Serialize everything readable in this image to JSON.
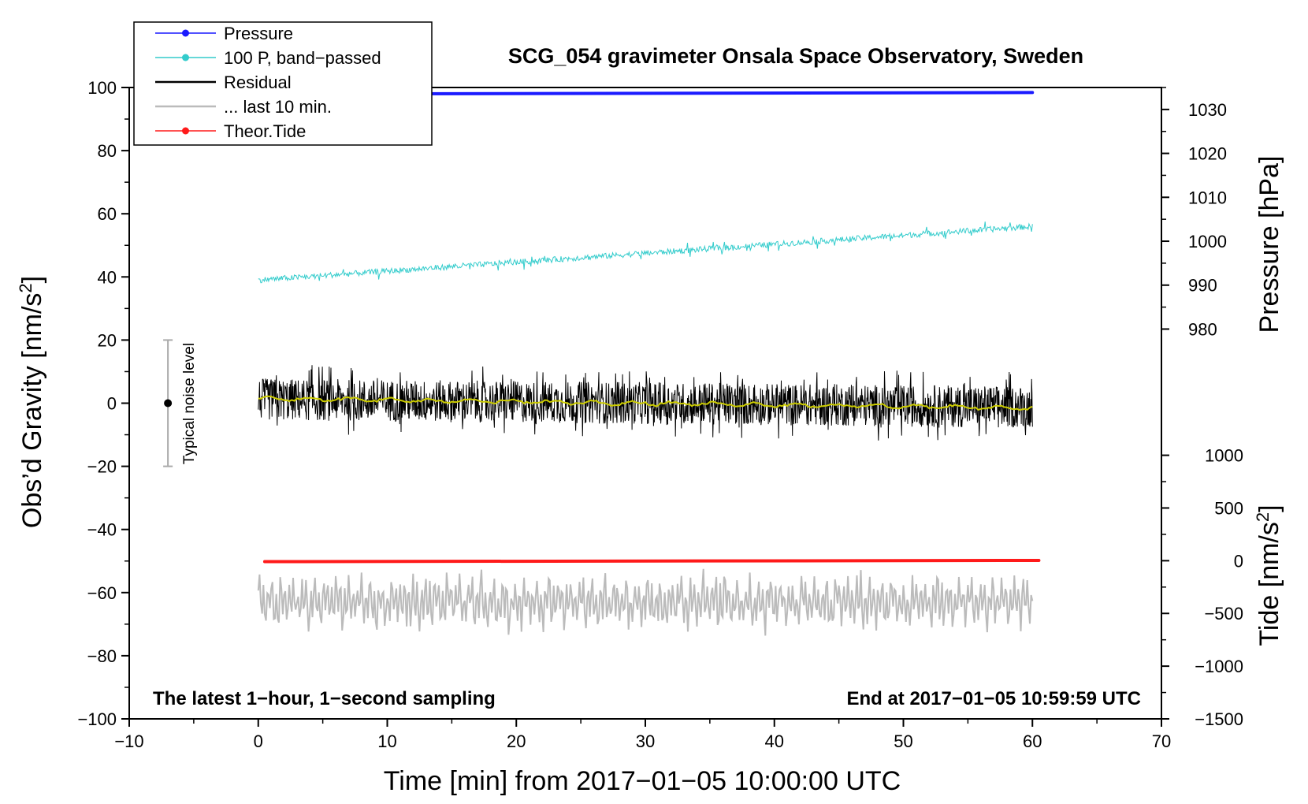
{
  "chart_data": {
    "type": "line",
    "title": "SCG_054 gravimeter Onsala Space Observatory, Sweden",
    "xlabel": "Time [min] from 2017−01−05 10:00:00 UTC",
    "xlim": [
      -10,
      70
    ],
    "x_ticks": [
      "−10",
      "0",
      "10",
      "20",
      "30",
      "40",
      "50",
      "60",
      "70"
    ],
    "left_axis": {
      "label_main": "Obs’d Gravity [nm/s",
      "label_sup": "2",
      "label_tail": "]",
      "ylim": [
        -100,
        100
      ],
      "ticks": [
        "−100",
        "−80",
        "−60",
        "−40",
        "−20",
        "0",
        "20",
        "40",
        "60",
        "80",
        "100"
      ]
    },
    "right_axis_pressure": {
      "label": "Pressure [hPa]",
      "ticks": [
        "980",
        "990",
        "1000",
        "1010",
        "1020",
        "1030"
      ],
      "gravity_equivalent_range": [
        20,
        100
      ],
      "range": [
        977.5,
        1035
      ]
    },
    "right_axis_tide": {
      "label_main": "Tide [nm/s",
      "label_sup": "2",
      "label_tail": "]",
      "ticks": [
        "−1500",
        "−1000",
        "−500",
        "0",
        "500",
        "1000"
      ],
      "gravity_equivalent_range": [
        -100,
        -16.5
      ],
      "range": [
        -1500,
        1000
      ]
    },
    "annotations": {
      "bottom_left": "The latest 1−hour, 1−second sampling",
      "bottom_right": "End at 2017−01−05 10:59:59 UTC",
      "noise": "Typical noise level"
    },
    "noise_bar": {
      "x": -7,
      "y_center": 0,
      "y_low": -20,
      "y_high": 20
    },
    "legend": [
      {
        "label": "Pressure",
        "color": "#1a1aff",
        "marker": true
      },
      {
        "label": "100 P, band−passed",
        "color": "#33cccc",
        "marker": true
      },
      {
        "label": "Residual",
        "color": "#000000",
        "marker": false
      },
      {
        "label": "... last 10 min.",
        "color": "#bbbbbb",
        "marker": false
      },
      {
        "label": "Theor.Tide",
        "color": "#ff1a1a",
        "marker": true
      }
    ],
    "series": [
      {
        "name": "Pressure",
        "color": "#1a1aff",
        "x_range": [
          0,
          60
        ],
        "y_start": 98.0,
        "y_end": 98.4
      },
      {
        "name": "100 P, band−passed",
        "color": "#33cccc",
        "x_range": [
          0,
          60
        ],
        "y_start": 39,
        "y_end": 56,
        "noise": 1.5
      },
      {
        "name": "Residual",
        "color": "#000000",
        "x_range": [
          0,
          60
        ],
        "y_center": 0,
        "y_spread": 7,
        "y_extremes": [
          -15,
          13
        ]
      },
      {
        "name": "Residual smoothed",
        "color": "#cccc00",
        "x_range": [
          0,
          60
        ],
        "y_start": 1.5,
        "y_end": -1.5
      },
      {
        "name": "... last 10 min.",
        "color": "#bbbbbb",
        "x_range": [
          0,
          60
        ],
        "y_center": -63,
        "y_extremes": [
          -77,
          -50
        ]
      },
      {
        "name": "Theor.Tide",
        "color": "#ff1a1a",
        "x_range": [
          0.5,
          60.5
        ],
        "y_start": -50.2,
        "y_end": -49.8
      }
    ]
  }
}
